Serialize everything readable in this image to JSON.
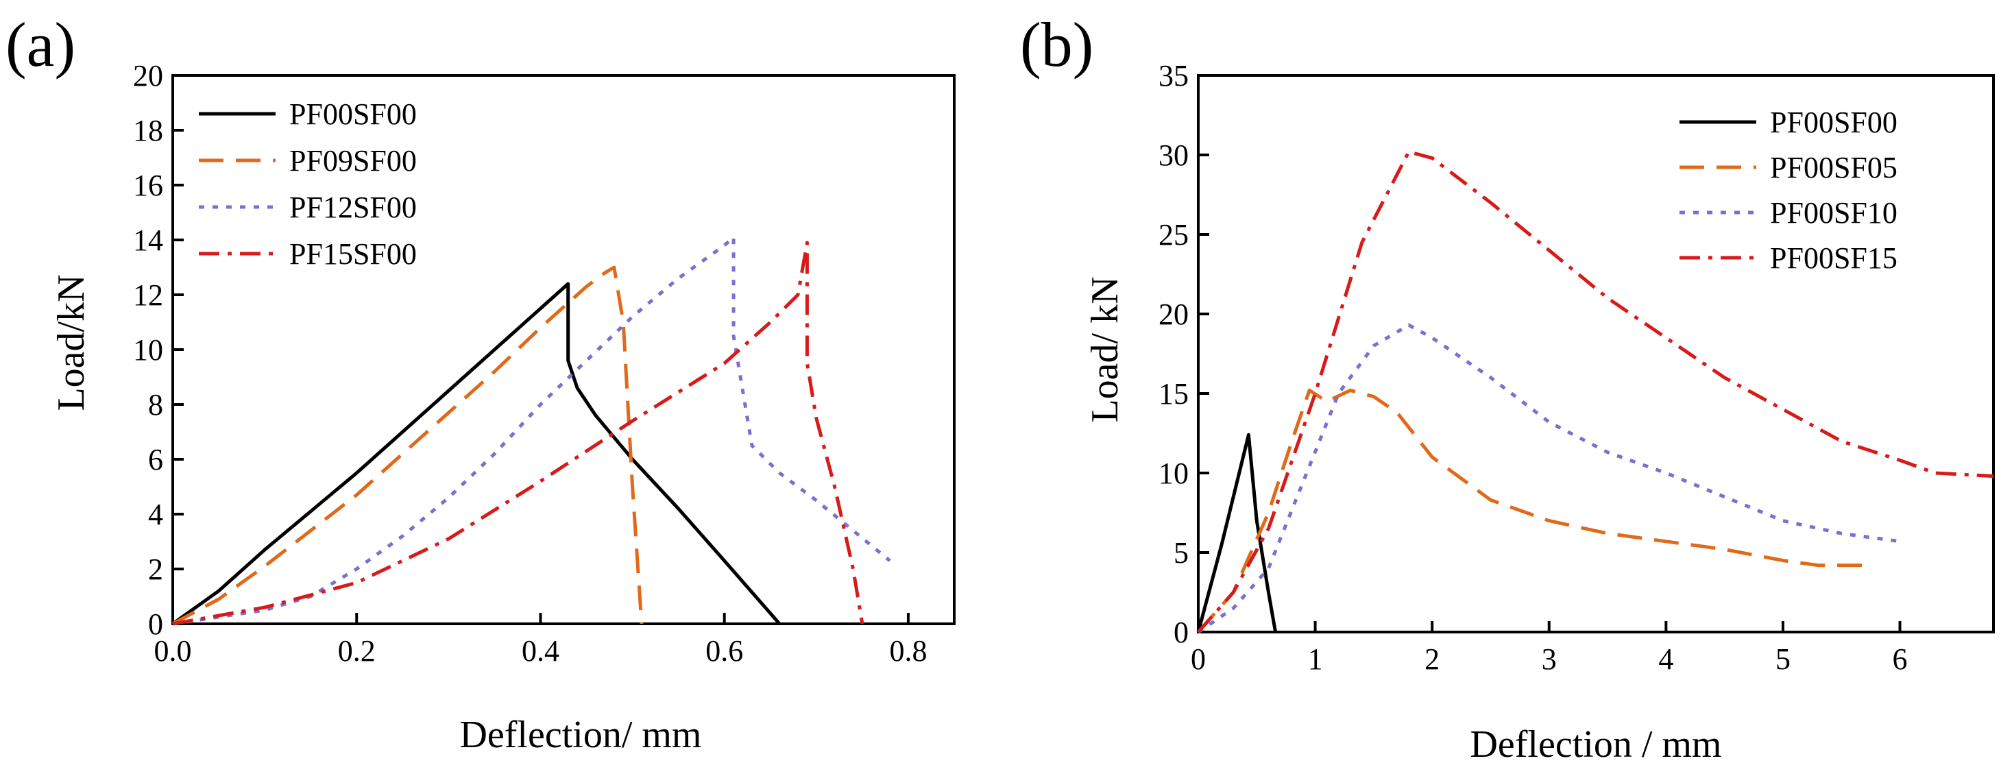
{
  "chart_data": [
    {
      "type": "line",
      "panel_label": "(a)",
      "title": "",
      "xlabel": "Deflection/ mm",
      "ylabel": "Load/kN",
      "xlim": [
        0,
        0.85
      ],
      "ylim": [
        0,
        20
      ],
      "xticks": [
        0.0,
        0.2,
        0.4,
        0.6,
        0.8
      ],
      "xtick_labels": [
        "0.0",
        "0.2",
        "0.4",
        "0.6",
        "0.8"
      ],
      "yticks": [
        0,
        2,
        4,
        6,
        8,
        10,
        12,
        14,
        16,
        18,
        20
      ],
      "ytick_labels": [
        "0",
        "2",
        "4",
        "6",
        "8",
        "10",
        "12",
        "14",
        "16",
        "18",
        "20"
      ],
      "legend_position": "top-left",
      "series": [
        {
          "name": "PF00SF00",
          "color": "#000000",
          "dash": "solid",
          "x": [
            0,
            0.05,
            0.1,
            0.15,
            0.2,
            0.25,
            0.3,
            0.35,
            0.4,
            0.43,
            0.43,
            0.44,
            0.46,
            0.5,
            0.55,
            0.6,
            0.66
          ],
          "y": [
            0,
            1.2,
            2.7,
            4.1,
            5.5,
            7.0,
            8.5,
            10.0,
            11.5,
            12.4,
            9.6,
            8.6,
            7.6,
            6.0,
            4.2,
            2.3,
            0
          ]
        },
        {
          "name": "PF09SF00",
          "color": "#E06A19",
          "dash": "dashed",
          "x": [
            0,
            0.05,
            0.1,
            0.15,
            0.2,
            0.25,
            0.3,
            0.35,
            0.4,
            0.45,
            0.47,
            0.48,
            0.49,
            0.5,
            0.51
          ],
          "y": [
            0,
            0.9,
            2.1,
            3.4,
            4.7,
            6.2,
            7.7,
            9.2,
            10.8,
            12.3,
            12.8,
            13.0,
            11.0,
            5.0,
            0
          ]
        },
        {
          "name": "PF12SF00",
          "color": "#7B6FD0",
          "dash": "dotted",
          "x": [
            0,
            0.1,
            0.15,
            0.2,
            0.25,
            0.3,
            0.35,
            0.4,
            0.45,
            0.5,
            0.55,
            0.6,
            0.61,
            0.61,
            0.63,
            0.66,
            0.7,
            0.78
          ],
          "y": [
            0,
            0.5,
            1.0,
            2.0,
            3.2,
            4.6,
            6.2,
            8.0,
            9.6,
            11.2,
            12.6,
            13.8,
            14.1,
            10.5,
            6.5,
            5.5,
            4.5,
            2.3
          ]
        },
        {
          "name": "PF15SF00",
          "color": "#D71A1A",
          "dash": "dashdot",
          "x": [
            0,
            0.1,
            0.2,
            0.3,
            0.4,
            0.5,
            0.6,
            0.65,
            0.68,
            0.69,
            0.69,
            0.7,
            0.72,
            0.74,
            0.75
          ],
          "y": [
            0,
            0.6,
            1.5,
            3.1,
            5.2,
            7.4,
            9.5,
            11.0,
            12.0,
            13.9,
            9.5,
            7.5,
            5.0,
            2.0,
            0
          ]
        }
      ]
    },
    {
      "type": "line",
      "panel_label": "(b)",
      "title": "",
      "xlabel": "Deflection / mm",
      "ylabel": "Load/ kN",
      "xlim": [
        0,
        6.8
      ],
      "ylim": [
        0,
        35
      ],
      "xticks": [
        0,
        1,
        2,
        3,
        4,
        5,
        6
      ],
      "xtick_labels": [
        "0",
        "1",
        "2",
        "3",
        "4",
        "5",
        "6"
      ],
      "yticks": [
        0,
        5,
        10,
        15,
        20,
        25,
        30,
        35
      ],
      "ytick_labels": [
        "0",
        "5",
        "10",
        "15",
        "20",
        "25",
        "30",
        "35"
      ],
      "legend_position": "top-right",
      "series": [
        {
          "name": "PF00SF00",
          "color": "#000000",
          "dash": "solid",
          "x": [
            0,
            0.2,
            0.43,
            0.5,
            0.6,
            0.66
          ],
          "y": [
            0,
            5.5,
            12.4,
            7.0,
            2.5,
            0
          ]
        },
        {
          "name": "PF00SF05",
          "color": "#E06A19",
          "dash": "dashed",
          "x": [
            0,
            0.3,
            0.6,
            0.8,
            0.95,
            1.1,
            1.3,
            1.5,
            1.7,
            2.0,
            2.5,
            3.0,
            3.5,
            4.0,
            4.5,
            5.0,
            5.3,
            5.7
          ],
          "y": [
            0,
            2.5,
            7.5,
            12.0,
            15.2,
            14.5,
            15.2,
            14.8,
            13.8,
            11.0,
            8.3,
            7.0,
            6.2,
            5.7,
            5.2,
            4.5,
            4.2,
            4.2
          ]
        },
        {
          "name": "PF00SF10",
          "color": "#7B6FD0",
          "dash": "dotted",
          "x": [
            0,
            0.3,
            0.6,
            0.9,
            1.2,
            1.5,
            1.8,
            2.0,
            2.5,
            3.0,
            3.5,
            4.0,
            4.5,
            5.0,
            5.5,
            6.0
          ],
          "y": [
            0,
            1.5,
            4.0,
            9.5,
            15.0,
            18.0,
            19.3,
            18.5,
            16.0,
            13.2,
            11.3,
            10.0,
            8.5,
            7.0,
            6.2,
            5.7
          ]
        },
        {
          "name": "PF00SF15",
          "color": "#D71A1A",
          "dash": "dashdot",
          "x": [
            0,
            0.3,
            0.6,
            1.0,
            1.4,
            1.8,
            2.0,
            2.5,
            3.0,
            3.5,
            4.0,
            4.5,
            5.0,
            5.5,
            6.0,
            6.3,
            6.8
          ],
          "y": [
            0,
            2.5,
            6.5,
            15.0,
            24.5,
            30.2,
            29.8,
            27.0,
            24.0,
            21.0,
            18.5,
            16.0,
            14.0,
            12.0,
            10.8,
            10.0,
            9.8
          ]
        }
      ]
    }
  ]
}
